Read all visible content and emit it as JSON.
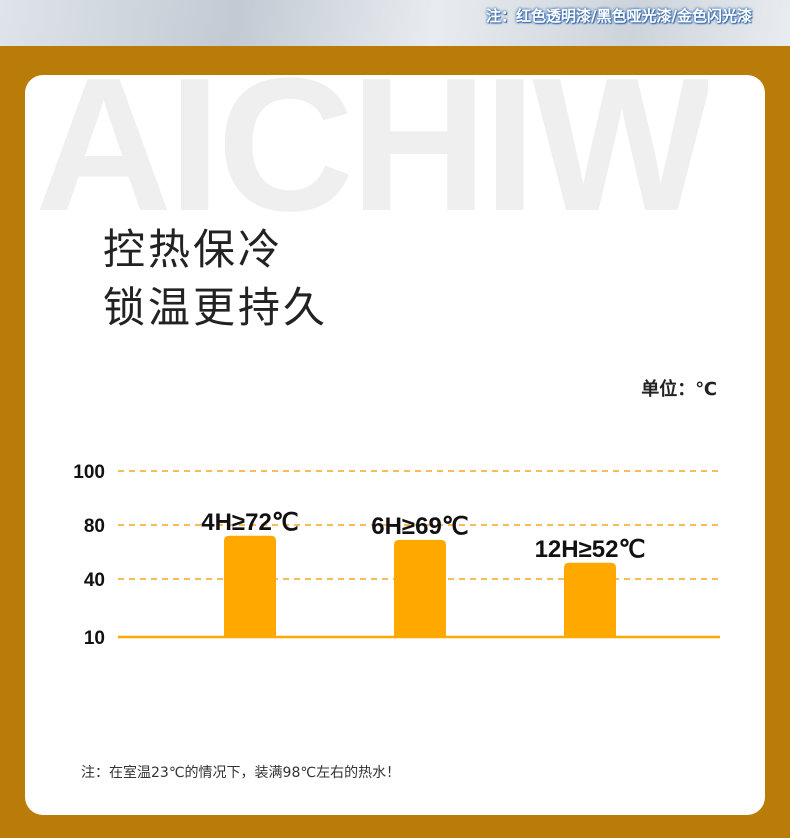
{
  "banner": {
    "note": "注：红色透明漆/黑色哑光漆/金色闪光漆"
  },
  "watermark": "AICHIW",
  "headline": [
    "控热保冷",
    "锁温更持久"
  ],
  "unit_label": "单位：℃",
  "footnote": "注：在室温23℃的情况下，装满98℃左右的热水！",
  "colors": {
    "background": "#b97c09",
    "bar": "#fea800",
    "grid": "#f5a623"
  },
  "chart_data": {
    "type": "bar",
    "categories": [
      "4H",
      "6H",
      "12H"
    ],
    "values": [
      72,
      69,
      52
    ],
    "data_labels": [
      "4H≥72℃",
      "6H≥69℃",
      "12H≥52℃"
    ],
    "yticks": [
      100,
      80,
      40,
      10
    ],
    "ytick_labels": [
      "100",
      "80",
      "40",
      "10"
    ],
    "ylabel": "单位：℃",
    "grid": true,
    "grid_style": "dashed"
  }
}
